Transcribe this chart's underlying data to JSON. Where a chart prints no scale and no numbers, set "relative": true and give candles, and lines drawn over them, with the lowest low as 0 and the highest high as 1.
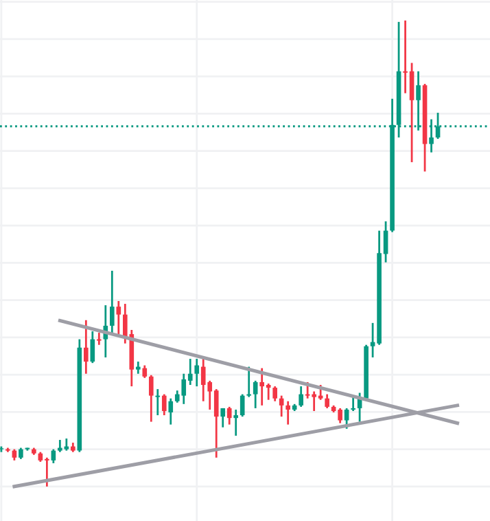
{
  "chart_data": {
    "type": "candlestick",
    "relative": true,
    "grid": true,
    "categories": [
      null,
      null,
      null,
      null,
      null,
      null,
      null,
      null,
      null,
      null,
      null,
      null,
      null,
      null,
      null,
      null,
      null,
      null,
      null,
      null,
      null,
      null,
      null,
      null,
      null,
      null,
      null,
      null,
      null,
      null,
      null,
      null,
      null,
      null,
      null,
      null,
      null,
      null,
      null,
      null,
      null,
      null,
      null,
      null,
      null,
      null,
      null,
      null,
      null,
      null,
      null,
      null,
      null,
      null,
      null,
      null,
      null,
      null,
      null,
      null,
      null,
      null,
      null,
      null,
      null,
      null,
      null,
      null,
      null,
      null,
      null
    ],
    "ohlc": [
      [
        0.08,
        0.086,
        0.074,
        0.08
      ],
      [
        0.08,
        0.083,
        0.074,
        0.077
      ],
      [
        0.077,
        0.08,
        0.056,
        0.062
      ],
      [
        0.062,
        0.083,
        0.059,
        0.08
      ],
      [
        0.08,
        0.083,
        0.077,
        0.083
      ],
      [
        0.08,
        0.083,
        0.068,
        0.071
      ],
      [
        0.071,
        0.074,
        0.053,
        0.056
      ],
      [
        0.059,
        0.062,
        0,
        0.056
      ],
      [
        0.056,
        0.08,
        0.05,
        0.077
      ],
      [
        0.077,
        0.1,
        0.074,
        0.083
      ],
      [
        0.08,
        0.103,
        0.077,
        0.086
      ],
      [
        0.086,
        0.094,
        0.074,
        0.077
      ],
      [
        0.077,
        0.316,
        0.074,
        0.298
      ],
      [
        0.298,
        0.357,
        0.242,
        0.268
      ],
      [
        0.268,
        0.333,
        0.265,
        0.316
      ],
      [
        0.316,
        0.33,
        0.304,
        0.313
      ],
      [
        0.316,
        0.389,
        0.277,
        0.345
      ],
      [
        0.345,
        0.463,
        0.327,
        0.386
      ],
      [
        0.386,
        0.398,
        0.327,
        0.369
      ],
      [
        0.369,
        0.392,
        0.307,
        0.319
      ],
      [
        0.327,
        0.336,
        0.215,
        0.251
      ],
      [
        0.251,
        0.268,
        0.242,
        0.257
      ],
      [
        0.254,
        0.26,
        0.233,
        0.236
      ],
      [
        0.236,
        0.239,
        0.139,
        0.195
      ],
      [
        0.192,
        0.209,
        0.153,
        0.195
      ],
      [
        0.195,
        0.198,
        0.153,
        0.162
      ],
      [
        0.159,
        0.189,
        0.133,
        0.183
      ],
      [
        0.183,
        0.206,
        0.18,
        0.198
      ],
      [
        0.195,
        0.242,
        0.177,
        0.23
      ],
      [
        0.227,
        0.274,
        0.218,
        0.242
      ],
      [
        0.242,
        0.274,
        0.215,
        0.26
      ],
      [
        0.257,
        0.277,
        0.183,
        0.218
      ],
      [
        0.224,
        0.227,
        0.165,
        0.204
      ],
      [
        0.206,
        0.209,
        0.062,
        0.15
      ],
      [
        0.15,
        0.168,
        0.127,
        0.168
      ],
      [
        0.168,
        0.171,
        0.133,
        0.147
      ],
      [
        0.147,
        0.165,
        0.109,
        0.153
      ],
      [
        0.153,
        0.198,
        0.15,
        0.195
      ],
      [
        0.195,
        0.257,
        0.192,
        0.198
      ],
      [
        0.198,
        0.227,
        0.168,
        0.224
      ],
      [
        0.224,
        0.254,
        0.174,
        0.215
      ],
      [
        0.218,
        0.221,
        0.186,
        0.212
      ],
      [
        0.212,
        0.215,
        0.183,
        0.189
      ],
      [
        0.189,
        0.195,
        0.15,
        0.174
      ],
      [
        0.174,
        0.183,
        0.133,
        0.165
      ],
      [
        0.165,
        0.177,
        0.162,
        0.174
      ],
      [
        0.174,
        0.215,
        0.171,
        0.198
      ],
      [
        0.198,
        0.224,
        0.189,
        0.195
      ],
      [
        0.198,
        0.204,
        0.162,
        0.192
      ],
      [
        0.195,
        0.218,
        0.186,
        0.189
      ],
      [
        0.189,
        0.198,
        0.168,
        0.171
      ],
      [
        0.171,
        0.174,
        0.159,
        0.162
      ],
      [
        0.165,
        0.168,
        0.136,
        0.142
      ],
      [
        0.142,
        0.168,
        0.124,
        0.165
      ],
      [
        0.165,
        0.192,
        0.162,
        0.168
      ],
      [
        0.168,
        0.201,
        0.139,
        0.189
      ],
      [
        0.189,
        0.304,
        0.186,
        0.301
      ],
      [
        0.301,
        0.351,
        0.277,
        0.31
      ],
      [
        0.307,
        0.549,
        0.304,
        0.501
      ],
      [
        0.499,
        0.569,
        0.481,
        0.549
      ],
      [
        0.549,
        0.832,
        0.546,
        0.776
      ],
      [
        0.776,
        0.997,
        0.749,
        0.891
      ],
      [
        0.891,
        1,
        0.844,
        0.888
      ],
      [
        0.891,
        0.909,
        0.696,
        0.829
      ],
      [
        0.829,
        0.891,
        0.764,
        0.861
      ],
      [
        0.861,
        0.864,
        0.676,
        0.735
      ],
      [
        0.735,
        0.788,
        0.717,
        0.749
      ],
      [
        0.749,
        0.802,
        0.746,
        0.773
      ],
      null,
      null,
      null
    ],
    "colors": [
      "#089981",
      "#f23645",
      "#f23645",
      "#089981",
      "#089981",
      "#f23645",
      "#f23645",
      "#f23645",
      "#089981",
      "#089981",
      "#089981",
      "#f23645",
      "#089981",
      "#f23645",
      "#089981",
      "#f23645",
      "#089981",
      "#089981",
      "#f23645",
      "#f23645",
      "#f23645",
      "#089981",
      "#f23645",
      "#f23645",
      "#089981",
      "#f23645",
      "#089981",
      "#089981",
      "#089981",
      "#089981",
      "#089981",
      "#f23645",
      "#f23645",
      "#f23645",
      "#089981",
      "#f23645",
      "#089981",
      "#089981",
      "#089981",
      "#089981",
      "#f23645",
      "#f23645",
      "#f23645",
      "#f23645",
      "#f23645",
      "#089981",
      "#089981",
      "#f23645",
      "#f23645",
      "#f23645",
      "#f23645",
      "#f23645",
      "#f23645",
      "#089981",
      "#089981",
      "#089981",
      "#089981",
      "#089981",
      "#089981",
      "#089981",
      "#089981",
      "#089981",
      "#f23645",
      "#f23645",
      "#089981",
      "#f23645",
      "#089981",
      "#089981",
      null,
      null,
      null
    ],
    "series": [
      {
        "type": "line",
        "color": "#9e9ea6",
        "values": [
          null,
          null,
          null,
          null,
          null,
          null,
          null,
          null,
          null,
          0.356,
          null,
          null,
          null,
          null,
          null,
          null,
          null,
          null,
          null,
          null,
          null,
          null,
          null,
          null,
          null,
          null,
          null,
          null,
          null,
          null,
          null,
          null,
          null,
          null,
          null,
          null,
          null,
          null,
          null,
          null,
          null,
          null,
          null,
          null,
          null,
          null,
          null,
          null,
          null,
          null,
          null,
          null,
          null,
          null,
          null,
          null,
          null,
          null,
          null,
          null,
          null,
          null,
          null,
          null,
          null,
          null,
          null,
          null,
          null,
          null,
          0.136
        ]
      },
      {
        "type": "line",
        "color": "#9e9ea6",
        "values": [
          null,
          null,
          0.0,
          null,
          null,
          null,
          null,
          null,
          null,
          null,
          null,
          null,
          null,
          null,
          null,
          null,
          null,
          null,
          null,
          null,
          null,
          null,
          null,
          null,
          null,
          null,
          null,
          null,
          null,
          null,
          null,
          null,
          null,
          null,
          null,
          null,
          null,
          null,
          null,
          null,
          null,
          null,
          null,
          null,
          null,
          null,
          null,
          null,
          null,
          null,
          null,
          null,
          null,
          null,
          null,
          null,
          null,
          null,
          null,
          null,
          null,
          null,
          null,
          null,
          null,
          null,
          null,
          null,
          null,
          null,
          0.174
        ]
      }
    ],
    "ref_lines": [
      {
        "axis": "y",
        "value": 0.773,
        "color": "#089981",
        "line_style": "dotted"
      }
    ]
  }
}
